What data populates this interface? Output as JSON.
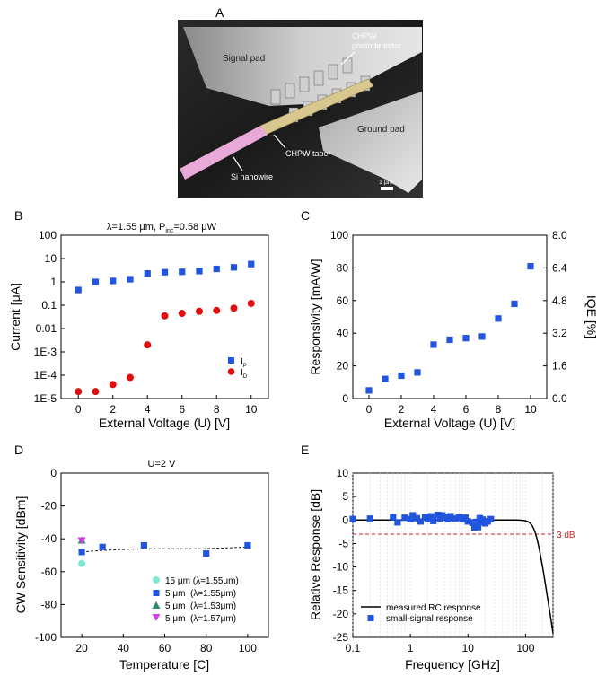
{
  "panel_a": {
    "letter": "A",
    "labels": {
      "signal_pad": "Signal pad",
      "chpw_photodetector_1": "CHPW",
      "chpw_photodetector_2": "photodetector",
      "ground_pad": "Ground pad",
      "chpw_taper": "CHPW taper",
      "si_nanowire": "Si nanowire",
      "scale_bar": "1 μm"
    }
  },
  "chart_data": [
    {
      "id": "B",
      "type": "scatter",
      "letter": "B",
      "title_parts": [
        "λ=1.55 μm, P",
        "inc",
        "=0.58 μW"
      ],
      "xlabel": "External Voltage (U) [V]",
      "ylabel": "Current [μA]",
      "yscale": "log",
      "xlim": [
        -1,
        11
      ],
      "ylim": [
        1e-05,
        100
      ],
      "xticks": [
        "0",
        "2",
        "4",
        "6",
        "8",
        "10"
      ],
      "yticks": [
        "100",
        "10",
        "1",
        "0.1",
        "0.01",
        "1E-3",
        "1E-4",
        "1E-5"
      ],
      "legend_position": "bottom-right",
      "series": [
        {
          "name": "I",
          "sub": "P",
          "color": "#2255dd",
          "marker": "square",
          "x": [
            0,
            1,
            2,
            3,
            4,
            5,
            6,
            7,
            8,
            9,
            10
          ],
          "values": [
            0.45,
            1.0,
            1.1,
            1.3,
            2.3,
            2.6,
            2.7,
            2.9,
            3.6,
            4.2,
            5.8
          ]
        },
        {
          "name": "I",
          "sub": "D",
          "color": "#e01010",
          "marker": "circle",
          "x": [
            0,
            1,
            2,
            3,
            4,
            5,
            6,
            7,
            8,
            9,
            10
          ],
          "values": [
            2e-05,
            2e-05,
            4e-05,
            8e-05,
            0.002,
            0.035,
            0.045,
            0.055,
            0.06,
            0.075,
            0.12
          ]
        }
      ]
    },
    {
      "id": "C",
      "type": "scatter",
      "letter": "C",
      "xlabel": "External Voltage (U) [V]",
      "ylabel": "Responsivity [mA/W]",
      "ylabel_right": "IQE [%]",
      "xlim": [
        -1,
        11
      ],
      "ylim": [
        0,
        100
      ],
      "ylim_right": [
        0,
        8
      ],
      "xticks": [
        "0",
        "2",
        "4",
        "6",
        "8",
        "10"
      ],
      "yticks": [
        "0",
        "20",
        "40",
        "60",
        "80",
        "100"
      ],
      "yticks_right": [
        "0.0",
        "1.6",
        "3.2",
        "4.8",
        "6.4",
        "8.0"
      ],
      "series": [
        {
          "name": "Responsivity",
          "color": "#2255dd",
          "marker": "square",
          "x": [
            0,
            1,
            2,
            3,
            4,
            5,
            6,
            7,
            8,
            9,
            10
          ],
          "values": [
            5,
            12,
            14,
            16,
            33,
            36,
            37,
            38,
            49,
            58,
            81
          ]
        }
      ]
    },
    {
      "id": "D",
      "type": "scatter",
      "letter": "D",
      "title": "U=2 V",
      "xlabel": "Temperature [C]",
      "ylabel": "CW Sensitivity [dBm]",
      "xlim": [
        10,
        110
      ],
      "ylim": [
        -100,
        0
      ],
      "xticks": [
        "20",
        "40",
        "60",
        "80",
        "100"
      ],
      "yticks": [
        "0",
        "-20",
        "-40",
        "-60",
        "-80",
        "-100"
      ],
      "legend_position": "bottom-right",
      "fit_line": {
        "x": [
          20,
          30,
          50,
          80,
          100
        ],
        "values": [
          -48,
          -47,
          -46,
          -46,
          -45
        ]
      },
      "series": [
        {
          "name": "15 μm (λ=1.55μm)",
          "color": "#7fe8d8",
          "marker": "circle",
          "x": [
            20
          ],
          "values": [
            -55
          ]
        },
        {
          "name": "5 μm  (λ=1.55μm)",
          "color": "#2255dd",
          "marker": "square",
          "x": [
            20,
            30,
            50,
            80,
            100
          ],
          "values": [
            -48,
            -45,
            -44,
            -49,
            -44
          ]
        },
        {
          "name": "5 μm  (λ=1.53μm)",
          "color": "#2e8b70",
          "marker": "triangle-up",
          "x": [
            20
          ],
          "values": [
            -41
          ]
        },
        {
          "name": "5 μm  (λ=1.57μm)",
          "color": "#cc44dd",
          "marker": "triangle-down",
          "x": [
            20
          ],
          "values": [
            -41
          ]
        }
      ]
    },
    {
      "id": "E",
      "type": "line",
      "letter": "E",
      "xlabel": "Frequency [GHz]",
      "ylabel": "Relative Response [dB]",
      "xscale": "log",
      "xlim": [
        0.1,
        300
      ],
      "ylim": [
        -25,
        10
      ],
      "xticks": [
        "0.1",
        "1",
        "10",
        "100"
      ],
      "yticks": [
        "10",
        "5",
        "0",
        "-5",
        "-10",
        "-15",
        "-20",
        "-25"
      ],
      "annotation": "3 dB",
      "ref_line_db": -3,
      "legend_position": "bottom-left",
      "series": [
        {
          "name": "measured RC response",
          "color": "#000000",
          "marker": "line"
        },
        {
          "name": "small-signal response",
          "color": "#2255dd",
          "marker": "square",
          "x": [
            0.1,
            0.2,
            0.5,
            0.6,
            0.8,
            1.0,
            1.1,
            1.3,
            1.5,
            1.8,
            2.0,
            2.3,
            2.5,
            3.0,
            3.3,
            3.6,
            4.0,
            4.5,
            5.0,
            6,
            7,
            8,
            9,
            10,
            12,
            13,
            14,
            15,
            16,
            17,
            18,
            20,
            22,
            25
          ],
          "values": [
            0.2,
            0.3,
            0.6,
            -0.5,
            0.5,
            0.2,
            1.0,
            0.4,
            -0.3,
            0.6,
            0.2,
            0.8,
            -0.2,
            1.1,
            0.3,
            1.0,
            0.6,
            0.2,
            0.8,
            0.3,
            0.6,
            0.2,
            0.5,
            -0.3,
            -0.6,
            -1.6,
            -0.4,
            -1.5,
            0.4,
            -0.5,
            0.1,
            -0.7,
            -0.3,
            0.2
          ]
        }
      ]
    }
  ]
}
